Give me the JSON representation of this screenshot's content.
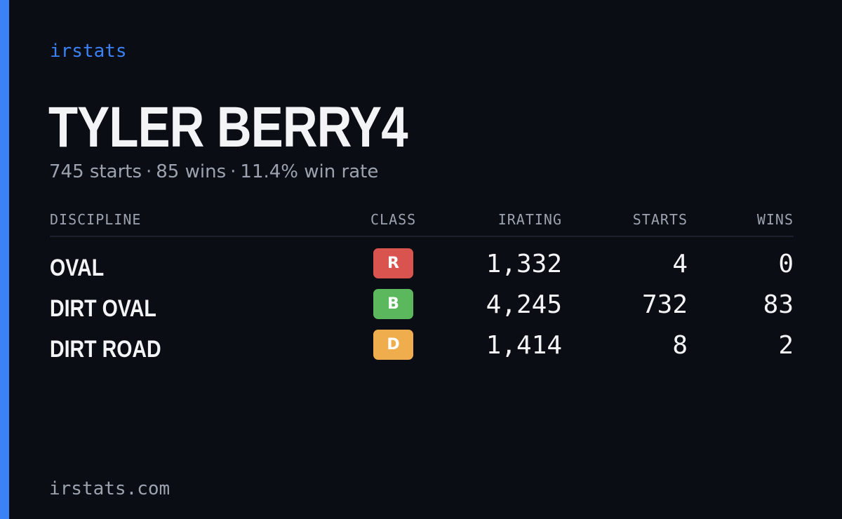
{
  "brand": "irstats",
  "driver": {
    "name": "TYLER BERRY4"
  },
  "summary": {
    "starts": "745 starts",
    "wins": "85 wins",
    "win_rate": "11.4% win rate",
    "separator": "·"
  },
  "table": {
    "headers": {
      "discipline": "DISCIPLINE",
      "class": "CLASS",
      "irating": "IRATING",
      "starts": "STARTS",
      "wins": "WINS"
    },
    "rows": [
      {
        "discipline": "OVAL",
        "class": "R",
        "class_color": "#d9534f",
        "irating": "1,332",
        "starts": "4",
        "wins": "0"
      },
      {
        "discipline": "DIRT OVAL",
        "class": "B",
        "class_color": "#5cb85c",
        "irating": "4,245",
        "starts": "732",
        "wins": "83"
      },
      {
        "discipline": "DIRT ROAD",
        "class": "D",
        "class_color": "#f0ad4e",
        "irating": "1,414",
        "starts": "8",
        "wins": "2"
      }
    ]
  },
  "footer": {
    "domain": "irstats.com"
  },
  "colors": {
    "background": "#0a0d14",
    "accent": "#3b82f6",
    "muted_text": "#9ca3af",
    "primary_text": "#f3f4f6"
  }
}
